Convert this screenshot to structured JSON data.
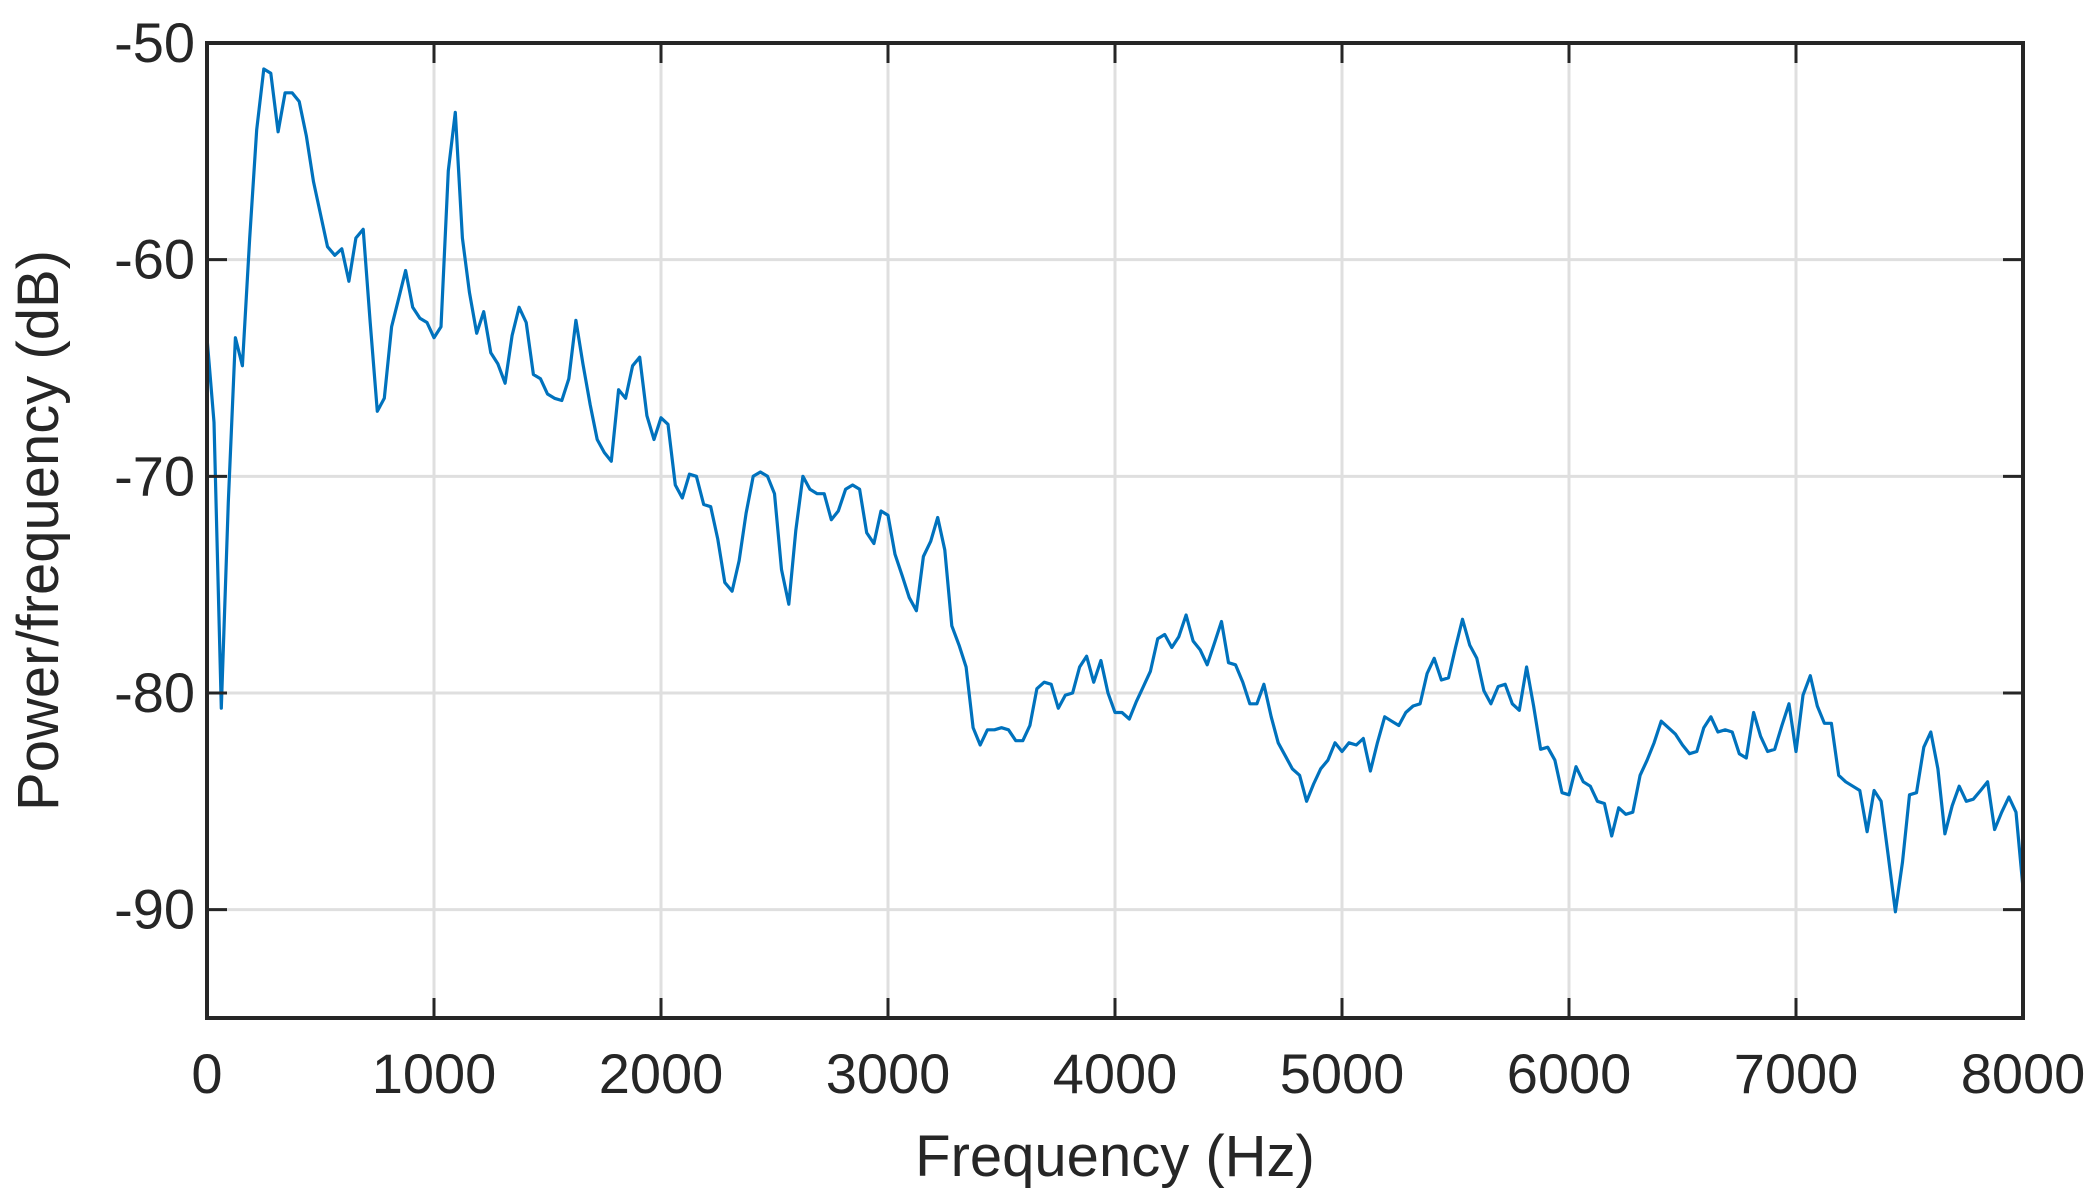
{
  "chart_data": {
    "type": "line",
    "title": "",
    "xlabel": "Frequency (Hz)",
    "ylabel": "Power/frequency (dB)",
    "xlim": [
      0,
      8000
    ],
    "ylim": [
      -95,
      -50
    ],
    "xticks": [
      0,
      1000,
      2000,
      3000,
      4000,
      5000,
      6000,
      7000,
      8000
    ],
    "yticks": [
      -50,
      -60,
      -70,
      -80,
      -90
    ],
    "xtick_labels": [
      "0",
      "1000",
      "2000",
      "3000",
      "4000",
      "5000",
      "6000",
      "7000",
      "8000"
    ],
    "ytick_labels": [
      "-50",
      "-60",
      "-70",
      "-80",
      "-90"
    ],
    "grid": true,
    "line_color": "#0072BD",
    "series": [
      {
        "x": [
          0,
          31,
          63,
          94,
          125,
          156,
          188,
          219,
          250,
          281,
          313,
          344,
          375,
          406,
          438,
          469,
          500,
          531,
          563,
          594,
          625,
          656,
          688,
          719,
          750,
          781,
          813,
          844,
          875,
          906,
          938,
          969,
          1000,
          1031,
          1063,
          1094,
          1125,
          1156,
          1188,
          1219,
          1250,
          1281,
          1313,
          1344,
          1375,
          1406,
          1438,
          1469,
          1500,
          1531,
          1563,
          1594,
          1625,
          1656,
          1688,
          1719,
          1750,
          1781,
          1813,
          1844,
          1875,
          1906,
          1938,
          1969,
          2000,
          2031,
          2063,
          2094,
          2125,
          2156,
          2188,
          2219,
          2250,
          2281,
          2313,
          2344,
          2375,
          2406,
          2438,
          2469,
          2500,
          2531,
          2563,
          2594,
          2625,
          2656,
          2688,
          2719,
          2750,
          2781,
          2813,
          2844,
          2875,
          2906,
          2938,
          2969,
          3000,
          3031,
          3063,
          3094,
          3125,
          3156,
          3188,
          3219,
          3250,
          3281,
          3313,
          3344,
          3375,
          3406,
          3438,
          3469,
          3500,
          3531,
          3563,
          3594,
          3625,
          3656,
          3688,
          3719,
          3750,
          3781,
          3813,
          3844,
          3875,
          3906,
          3938,
          3969,
          4000,
          4031,
          4063,
          4094,
          4125,
          4156,
          4188,
          4219,
          4250,
          4281,
          4313,
          4344,
          4375,
          4406,
          4438,
          4469,
          4500,
          4531,
          4563,
          4594,
          4625,
          4656,
          4688,
          4719,
          4750,
          4781,
          4813,
          4844,
          4875,
          4906,
          4938,
          4969,
          5000,
          5031,
          5063,
          5094,
          5125,
          5156,
          5188,
          5219,
          5250,
          5281,
          5313,
          5344,
          5375,
          5406,
          5438,
          5469,
          5500,
          5531,
          5563,
          5594,
          5625,
          5656,
          5688,
          5719,
          5750,
          5781,
          5813,
          5844,
          5875,
          5906,
          5938,
          5969,
          6000,
          6031,
          6063,
          6094,
          6125,
          6156,
          6188,
          6219,
          6250,
          6281,
          6313,
          6344,
          6375,
          6406,
          6438,
          6469,
          6500,
          6531,
          6563,
          6594,
          6625,
          6656,
          6688,
          6719,
          6750,
          6781,
          6813,
          6844,
          6875,
          6906,
          6938,
          6969,
          7000,
          7031,
          7063,
          7094,
          7125,
          7156,
          7188,
          7219,
          7250,
          7281,
          7313,
          7344,
          7375,
          7406,
          7438,
          7469,
          7500,
          7531,
          7563,
          7594,
          7625,
          7656,
          7688,
          7719,
          7750,
          7781,
          7813,
          7844,
          7875,
          7906,
          7938,
          7969,
          8000
        ],
        "values": [
          -63.6,
          -67.5,
          -80.7,
          -71.2,
          -63.6,
          -64.9,
          -59.0,
          -54.0,
          -51.2,
          -51.4,
          -54.1,
          -52.3,
          -52.3,
          -52.7,
          -54.3,
          -56.4,
          -57.9,
          -59.4,
          -59.8,
          -59.5,
          -61.0,
          -59.0,
          -58.6,
          -62.9,
          -67.0,
          -66.4,
          -63.1,
          -61.8,
          -60.5,
          -62.2,
          -62.7,
          -62.9,
          -63.6,
          -63.1,
          -55.9,
          -53.2,
          -59.0,
          -61.5,
          -63.4,
          -62.4,
          -64.3,
          -64.8,
          -65.7,
          -63.5,
          -62.2,
          -62.9,
          -65.3,
          -65.5,
          -66.2,
          -66.4,
          -66.5,
          -65.5,
          -62.8,
          -64.8,
          -66.7,
          -68.3,
          -68.9,
          -69.3,
          -66.0,
          -66.4,
          -64.9,
          -64.5,
          -67.2,
          -68.3,
          -67.3,
          -67.6,
          -70.4,
          -71.0,
          -69.9,
          -70.0,
          -71.3,
          -71.4,
          -72.9,
          -74.9,
          -75.3,
          -73.9,
          -71.7,
          -70.0,
          -69.8,
          -70.0,
          -70.8,
          -74.3,
          -75.9,
          -72.5,
          -70.0,
          -70.6,
          -70.8,
          -70.8,
          -72.0,
          -71.6,
          -70.6,
          -70.4,
          -70.6,
          -72.6,
          -73.1,
          -71.6,
          -71.8,
          -73.6,
          -74.6,
          -75.6,
          -76.2,
          -73.7,
          -73.0,
          -71.9,
          -73.4,
          -76.9,
          -77.8,
          -78.8,
          -81.6,
          -82.4,
          -81.7,
          -81.7,
          -81.6,
          -81.7,
          -82.2,
          -82.2,
          -81.5,
          -79.8,
          -79.5,
          -79.6,
          -80.7,
          -80.1,
          -80.0,
          -78.8,
          -78.3,
          -79.5,
          -78.5,
          -80.0,
          -80.9,
          -80.9,
          -81.2,
          -80.4,
          -79.7,
          -79.0,
          -77.5,
          -77.3,
          -77.9,
          -77.4,
          -76.4,
          -77.6,
          -78.0,
          -78.7,
          -77.7,
          -76.7,
          -78.6,
          -78.7,
          -79.5,
          -80.5,
          -80.5,
          -79.6,
          -81.1,
          -82.3,
          -82.9,
          -83.5,
          -83.8,
          -85.0,
          -84.2,
          -83.5,
          -83.1,
          -82.3,
          -82.7,
          -82.3,
          -82.4,
          -82.1,
          -83.6,
          -82.3,
          -81.1,
          -81.3,
          -81.5,
          -80.9,
          -80.6,
          -80.5,
          -79.1,
          -78.4,
          -79.4,
          -79.3,
          -77.9,
          -76.6,
          -77.8,
          -78.4,
          -79.9,
          -80.5,
          -79.7,
          -79.6,
          -80.5,
          -80.8,
          -78.8,
          -80.6,
          -82.6,
          -82.5,
          -83.1,
          -84.6,
          -84.7,
          -83.4,
          -84.1,
          -84.3,
          -85.0,
          -85.1,
          -86.6,
          -85.3,
          -85.6,
          -85.5,
          -83.8,
          -83.1,
          -82.3,
          -81.3,
          -81.6,
          -81.9,
          -82.4,
          -82.8,
          -82.7,
          -81.6,
          -81.1,
          -81.8,
          -81.7,
          -81.8,
          -82.8,
          -83.0,
          -80.9,
          -82.0,
          -82.7,
          -82.6,
          -81.5,
          -80.5,
          -82.7,
          -80.1,
          -79.2,
          -80.6,
          -81.4,
          -81.4,
          -83.8,
          -84.1,
          -84.3,
          -84.5,
          -86.4,
          -84.5,
          -85.0,
          -87.5,
          -90.1,
          -87.8,
          -84.7,
          -84.6,
          -82.5,
          -81.8,
          -83.5,
          -86.5,
          -85.2,
          -84.3,
          -85.0,
          -84.9,
          -84.5,
          -84.1,
          -86.3,
          -85.5,
          -84.8,
          -85.5,
          -89.0
        ]
      }
    ]
  }
}
